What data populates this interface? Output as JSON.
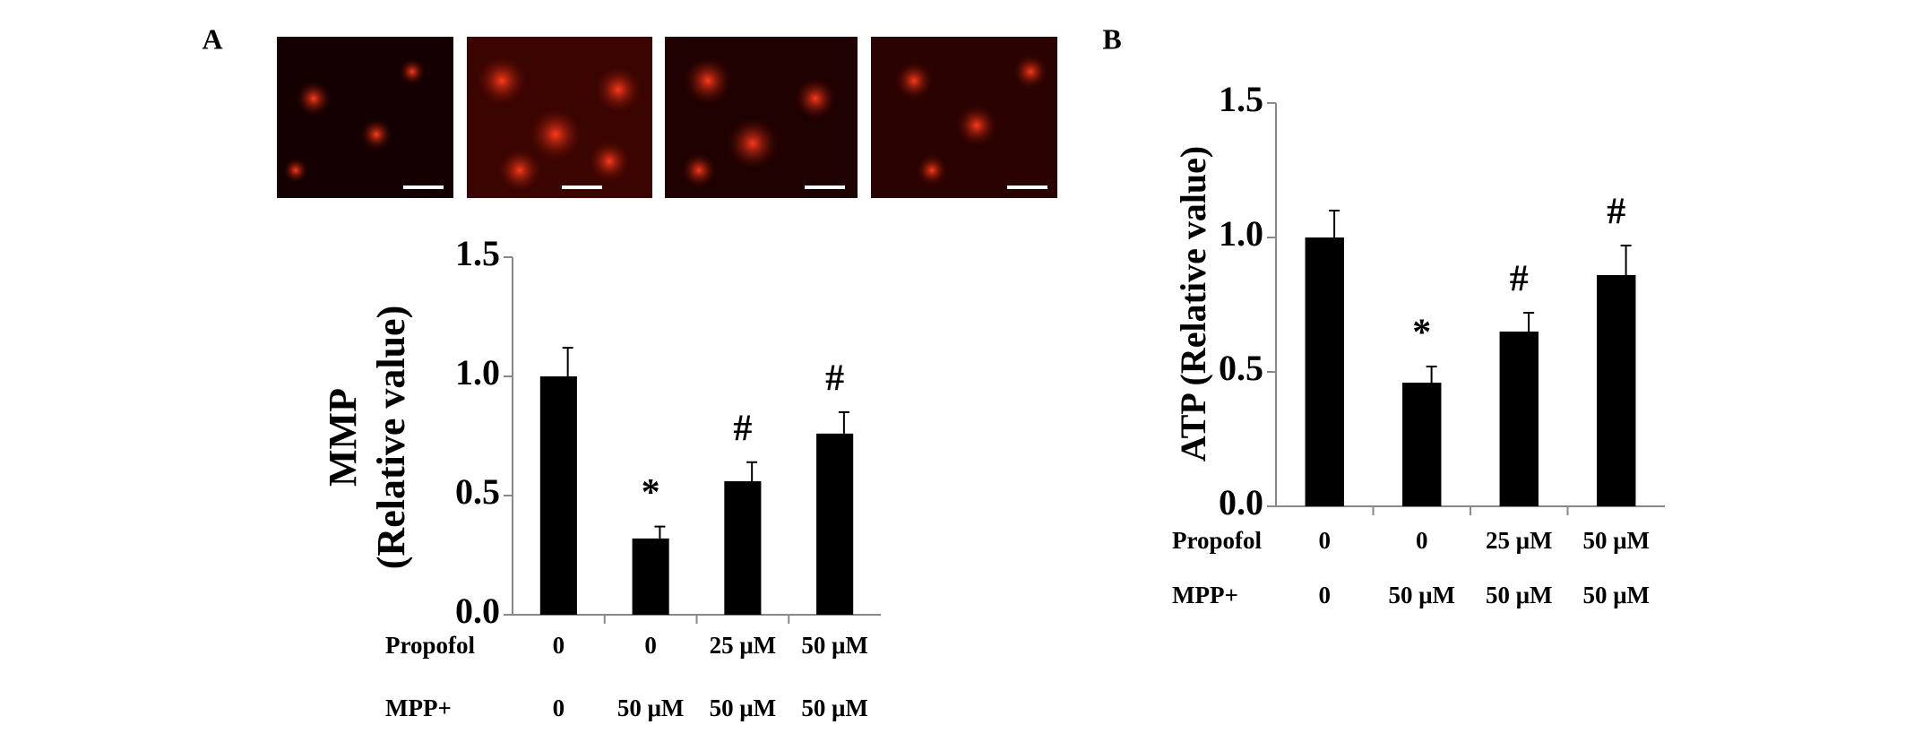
{
  "chart_data": [
    {
      "type": "bar",
      "panel": "A",
      "ylabel": [
        "MMP",
        "(Relative value)"
      ],
      "values": [
        1.0,
        0.32,
        0.56,
        0.76
      ],
      "errors": [
        0.12,
        0.05,
        0.08,
        0.09
      ],
      "annotations": [
        null,
        "*",
        "#",
        "#"
      ],
      "category_rows": [
        {
          "name": "Propofol",
          "labels": [
            "0",
            "0",
            "25 μM",
            "50 μM"
          ]
        },
        {
          "name": "MPP+",
          "labels": [
            "0",
            "50 μM",
            "50 μM",
            "50 μM"
          ]
        }
      ],
      "color": "#000000",
      "ylim": [
        0,
        1.5
      ],
      "yticks": [
        {
          "value": 0,
          "label": "0.0"
        },
        0.5,
        {
          "value": 1,
          "label": "1.0"
        },
        1.5
      ]
    },
    {
      "type": "bar",
      "panel": "B",
      "ylabel": [
        "ATP (Relative value)"
      ],
      "values": [
        1.0,
        0.46,
        0.65,
        0.86
      ],
      "errors": [
        0.1,
        0.06,
        0.07,
        0.11
      ],
      "annotations": [
        null,
        "*",
        "#",
        "#"
      ],
      "category_rows": [
        {
          "name": "Propofol",
          "labels": [
            "0",
            "0",
            "25 μM",
            "50 μM"
          ]
        },
        {
          "name": "MPP+",
          "labels": [
            "0",
            "50 μM",
            "50 μM",
            "50 μM"
          ]
        }
      ],
      "color": "#000000",
      "ylim": [
        0,
        1.5
      ],
      "yticks": [
        {
          "value": 0,
          "label": "0.0"
        },
        0.5,
        {
          "value": 1,
          "label": "1.0"
        },
        1.5
      ]
    }
  ]
}
